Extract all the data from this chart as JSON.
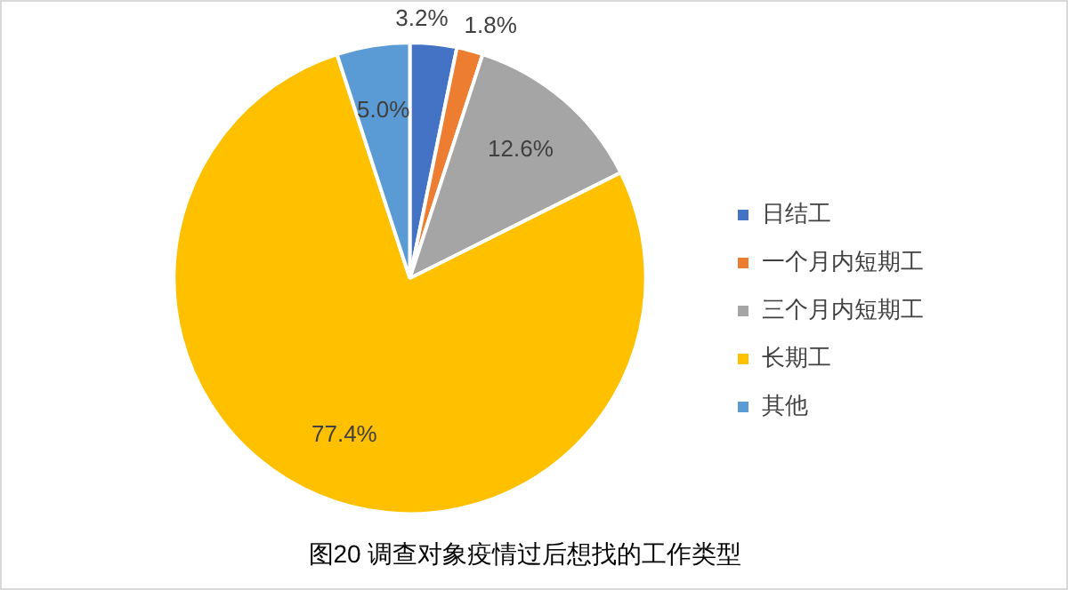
{
  "chart_data": {
    "type": "pie",
    "title": "图20 调查对象疫情过后想找的工作类型",
    "categories": [
      "日结工",
      "一个月内短期工",
      "三个月内短期工",
      "长期工",
      "其他"
    ],
    "values": [
      3.2,
      1.8,
      12.6,
      77.4,
      5.0
    ],
    "colors": [
      "#4472c4",
      "#ed7d31",
      "#a5a5a5",
      "#ffc000",
      "#5b9bd5"
    ],
    "value_labels": [
      "3.2%",
      "1.8%",
      "12.6%",
      "77.4%",
      "5.0%"
    ],
    "legend": "right"
  }
}
